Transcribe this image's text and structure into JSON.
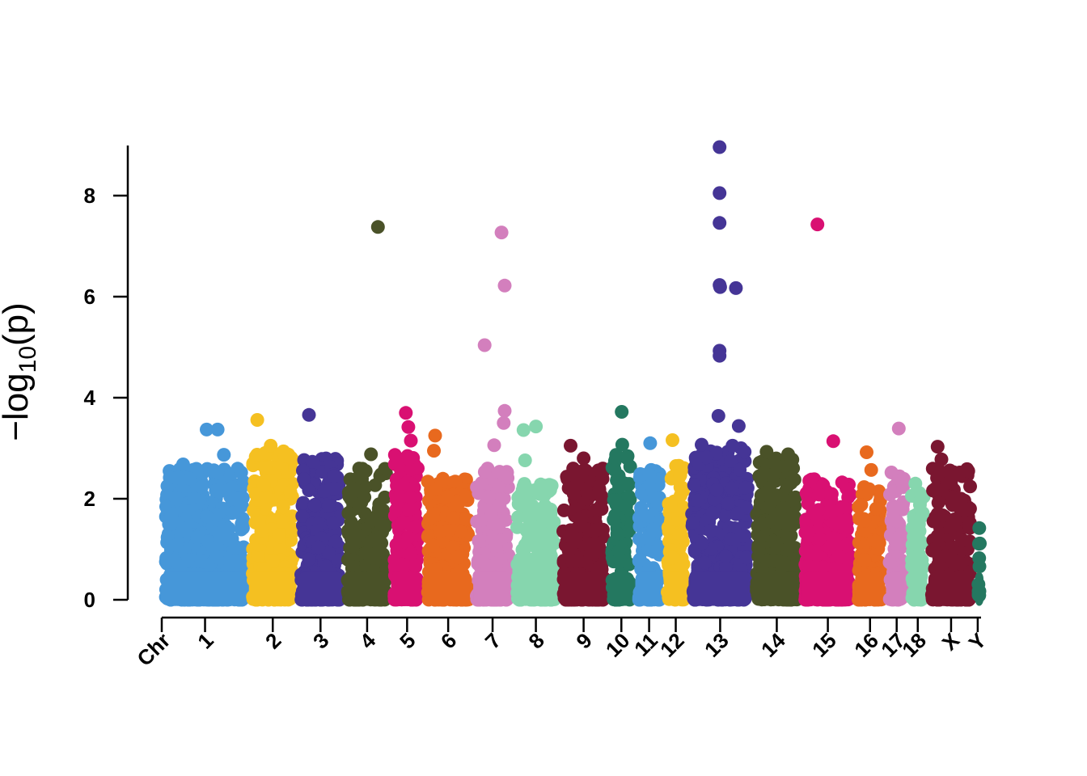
{
  "chart_data": {
    "type": "scatter",
    "ylabel": "−log10(p)",
    "ylabel_main": "−log",
    "ylabel_sub": "10",
    "ylabel_tail": "(p)",
    "ylim": [
      0,
      9
    ],
    "yticks": [
      0,
      2,
      4,
      6,
      8
    ],
    "x_start_label": "Chr",
    "grid": false,
    "legend": "none",
    "chromosomes": [
      {
        "label": "1",
        "color": "#4697D9",
        "length": 1.95,
        "max_bg": 2.6
      },
      {
        "label": "2",
        "color": "#F5C021",
        "length": 1.1,
        "max_bg": 2.95
      },
      {
        "label": "3",
        "color": "#453596",
        "length": 1.05,
        "max_bg": 2.8
      },
      {
        "label": "4",
        "color": "#4A5228",
        "length": 1.05,
        "max_bg": 2.6
      },
      {
        "label": "5",
        "color": "#D91072",
        "length": 0.75,
        "max_bg": 2.9
      },
      {
        "label": "6",
        "color": "#E8691E",
        "length": 1.1,
        "max_bg": 2.4
      },
      {
        "label": "7",
        "color": "#D37FBD",
        "length": 0.9,
        "max_bg": 2.6
      },
      {
        "label": "8",
        "color": "#86D6AE",
        "length": 1.05,
        "max_bg": 2.3
      },
      {
        "label": "9",
        "color": "#7A1630",
        "length": 1.1,
        "max_bg": 2.6
      },
      {
        "label": "10",
        "color": "#247860",
        "length": 0.6,
        "max_bg": 3.0
      },
      {
        "label": "11",
        "color": "#4697D9",
        "length": 0.65,
        "max_bg": 2.6
      },
      {
        "label": "12",
        "color": "#F5C021",
        "length": 0.55,
        "max_bg": 2.7
      },
      {
        "label": "13",
        "color": "#453596",
        "length": 1.45,
        "max_bg": 3.0
      },
      {
        "label": "14",
        "color": "#4A5228",
        "length": 1.1,
        "max_bg": 2.8
      },
      {
        "label": "15",
        "color": "#D91072",
        "length": 1.2,
        "max_bg": 2.4
      },
      {
        "label": "16",
        "color": "#E8691E",
        "length": 0.7,
        "max_bg": 2.3
      },
      {
        "label": "17",
        "color": "#D37FBD",
        "length": 0.5,
        "max_bg": 2.6
      },
      {
        "label": "18",
        "color": "#86D6AE",
        "length": 0.45,
        "max_bg": 2.2
      },
      {
        "label": "X",
        "color": "#7A1630",
        "length": 1.05,
        "max_bg": 2.6
      },
      {
        "label": "Y",
        "color": "#247860",
        "length": 0.15,
        "max_bg": 1.4
      }
    ],
    "highlights": [
      {
        "chr": "1",
        "x": 0.05,
        "y": 2.42
      },
      {
        "chr": "1",
        "x": 0.22,
        "y": 2.68
      },
      {
        "chr": "1",
        "x": 0.52,
        "y": 3.37
      },
      {
        "chr": "1",
        "x": 0.66,
        "y": 3.37
      },
      {
        "chr": "1",
        "x": 0.74,
        "y": 2.87
      },
      {
        "chr": "1",
        "x": 0.96,
        "y": 2.52
      },
      {
        "chr": "2",
        "x": 0.12,
        "y": 3.56
      },
      {
        "chr": "2",
        "x": 0.45,
        "y": 3.05
      },
      {
        "chr": "2",
        "x": 0.8,
        "y": 2.85
      },
      {
        "chr": "3",
        "x": 0.2,
        "y": 3.66
      },
      {
        "chr": "3",
        "x": 0.85,
        "y": 2.45
      },
      {
        "chr": "4",
        "x": 0.6,
        "y": 2.88
      },
      {
        "chr": "4",
        "x": 0.78,
        "y": 7.38
      },
      {
        "chr": "5",
        "x": 0.45,
        "y": 3.7
      },
      {
        "chr": "5",
        "x": 0.55,
        "y": 3.42
      },
      {
        "chr": "5",
        "x": 0.65,
        "y": 3.15
      },
      {
        "chr": "6",
        "x": 0.18,
        "y": 3.25
      },
      {
        "chr": "6",
        "x": 0.15,
        "y": 2.95
      },
      {
        "chr": "7",
        "x": 0.25,
        "y": 5.04
      },
      {
        "chr": "7",
        "x": 0.55,
        "y": 3.06
      },
      {
        "chr": "7",
        "x": 0.78,
        "y": 7.27
      },
      {
        "chr": "7",
        "x": 0.88,
        "y": 6.22
      },
      {
        "chr": "7",
        "x": 0.88,
        "y": 3.74
      },
      {
        "chr": "7",
        "x": 0.85,
        "y": 3.5
      },
      {
        "chr": "8",
        "x": 0.18,
        "y": 3.36
      },
      {
        "chr": "8",
        "x": 0.5,
        "y": 3.43
      },
      {
        "chr": "8",
        "x": 0.22,
        "y": 2.76
      },
      {
        "chr": "9",
        "x": 0.18,
        "y": 3.05
      },
      {
        "chr": "9",
        "x": 0.5,
        "y": 2.8
      },
      {
        "chr": "10",
        "x": 0.52,
        "y": 3.72
      },
      {
        "chr": "10",
        "x": 0.55,
        "y": 3.07
      },
      {
        "chr": "11",
        "x": 0.55,
        "y": 3.1
      },
      {
        "chr": "12",
        "x": 0.3,
        "y": 3.16
      },
      {
        "chr": "13",
        "x": 0.17,
        "y": 3.07
      },
      {
        "chr": "13",
        "x": 0.47,
        "y": 3.64
      },
      {
        "chr": "13",
        "x": 0.49,
        "y": 8.96
      },
      {
        "chr": "13",
        "x": 0.49,
        "y": 8.05
      },
      {
        "chr": "13",
        "x": 0.49,
        "y": 7.46
      },
      {
        "chr": "13",
        "x": 0.49,
        "y": 6.23
      },
      {
        "chr": "13",
        "x": 0.5,
        "y": 6.19
      },
      {
        "chr": "13",
        "x": 0.49,
        "y": 4.93
      },
      {
        "chr": "13",
        "x": 0.49,
        "y": 4.83
      },
      {
        "chr": "13",
        "x": 0.78,
        "y": 6.17
      },
      {
        "chr": "13",
        "x": 0.83,
        "y": 3.44
      },
      {
        "chr": "13",
        "x": 0.72,
        "y": 3.05
      },
      {
        "chr": "13",
        "x": 0.95,
        "y": 2.22
      },
      {
        "chr": "14",
        "x": 0.25,
        "y": 2.93
      },
      {
        "chr": "14",
        "x": 0.78,
        "y": 2.88
      },
      {
        "chr": "15",
        "x": 0.27,
        "y": 7.43
      },
      {
        "chr": "15",
        "x": 0.62,
        "y": 3.14
      },
      {
        "chr": "15",
        "x": 0.9,
        "y": 1.58
      },
      {
        "chr": "16",
        "x": 0.35,
        "y": 2.92
      },
      {
        "chr": "16",
        "x": 0.55,
        "y": 2.57
      },
      {
        "chr": "17",
        "x": 0.65,
        "y": 3.39
      },
      {
        "chr": "18",
        "x": 0.3,
        "y": 2.3
      },
      {
        "chr": "X",
        "x": 0.15,
        "y": 3.03
      },
      {
        "chr": "X",
        "x": 0.25,
        "y": 2.78
      },
      {
        "chr": "X",
        "x": 0.5,
        "y": 2.44
      },
      {
        "chr": "X",
        "x": 0.85,
        "y": 1.8
      },
      {
        "chr": "Y",
        "x": 0.5,
        "y": 1.42
      }
    ]
  }
}
